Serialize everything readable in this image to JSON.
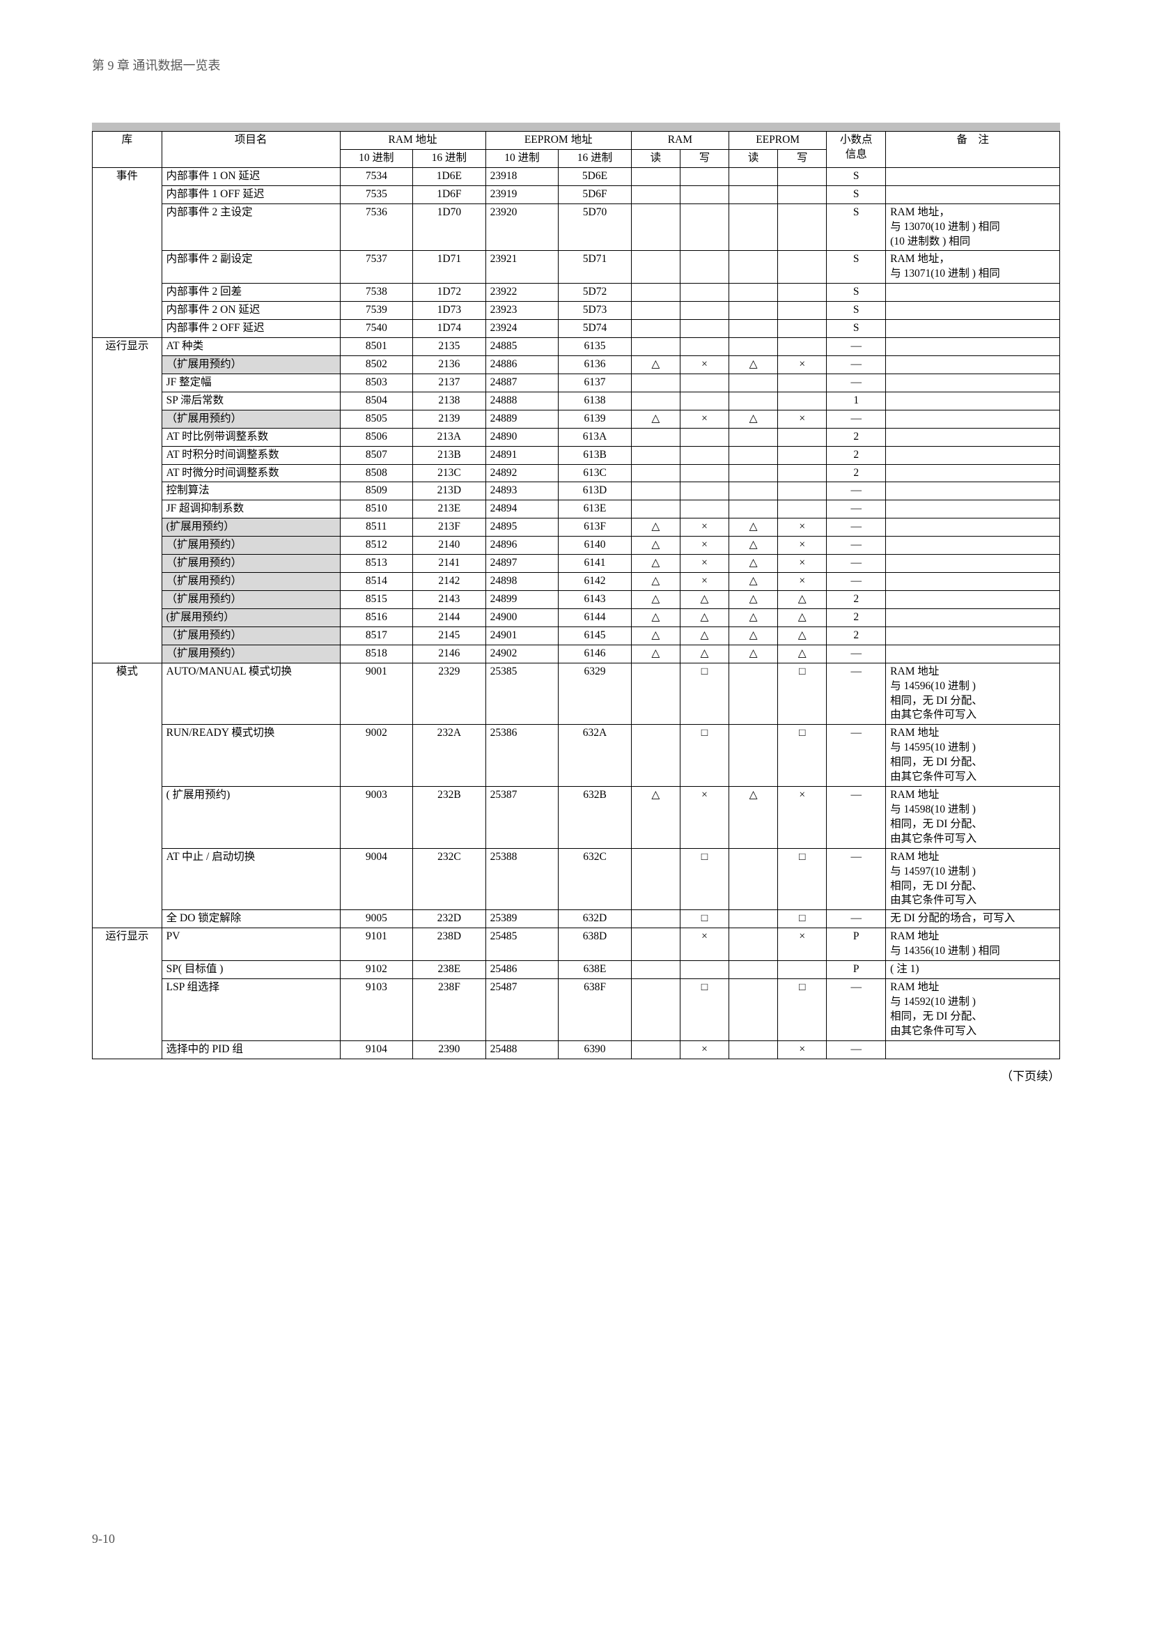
{
  "header": "第 9 章 通讯数据一览表",
  "footer_note": "（下页续）",
  "page_number": "9-10",
  "columns": {
    "lib": "库",
    "name": "项目名",
    "ram_addr": "RAM 地址",
    "eeprom_addr": "EEPROM 地址",
    "ram": "RAM",
    "eeprom": "EEPROM",
    "dp": "小数点\n信息",
    "remarks": "备　注",
    "dec": "10 进制",
    "hex": "16 进制",
    "read": "读",
    "write": "写"
  },
  "rows": [
    {
      "cat": "事件",
      "catspan": 7,
      "name": "内部事件 1 ON 延迟",
      "d1": "7534",
      "h1": "1D6E",
      "d2": "23918",
      "h2": "5D6E",
      "r": "",
      "w": "",
      "r2": "",
      "w2": "",
      "dp": "S",
      "rem": ""
    },
    {
      "name": "内部事件 1 OFF 延迟",
      "d1": "7535",
      "h1": "1D6F",
      "d2": "23919",
      "h2": "5D6F",
      "r": "",
      "w": "",
      "r2": "",
      "w2": "",
      "dp": "S",
      "rem": ""
    },
    {
      "name": "内部事件 2 主设定",
      "d1": "7536",
      "h1": "1D70",
      "d2": "23920",
      "h2": "5D70",
      "r": "",
      "w": "",
      "r2": "",
      "w2": "",
      "dp": "S",
      "rem": "RAM 地址，\n与 13070(10 进制 ) 相同\n(10 进制数 ) 相同"
    },
    {
      "name": "内部事件 2 副设定",
      "d1": "7537",
      "h1": "1D71",
      "d2": "23921",
      "h2": "5D71",
      "r": "",
      "w": "",
      "r2": "",
      "w2": "",
      "dp": "S",
      "rem": "RAM 地址，\n与 13071(10 进制 ) 相同"
    },
    {
      "name": "内部事件 2 回差",
      "d1": "7538",
      "h1": "1D72",
      "d2": "23922",
      "h2": "5D72",
      "r": "",
      "w": "",
      "r2": "",
      "w2": "",
      "dp": "S",
      "rem": ""
    },
    {
      "name": "内部事件 2 ON 延迟",
      "d1": "7539",
      "h1": "1D73",
      "d2": "23923",
      "h2": "5D73",
      "r": "",
      "w": "",
      "r2": "",
      "w2": "",
      "dp": "S",
      "rem": ""
    },
    {
      "name": "内部事件 2 OFF 延迟",
      "d1": "7540",
      "h1": "1D74",
      "d2": "23924",
      "h2": "5D74",
      "r": "",
      "w": "",
      "r2": "",
      "w2": "",
      "dp": "S",
      "rem": ""
    },
    {
      "cat": "运行显示",
      "catspan": 18,
      "name": "AT 种类",
      "d1": "8501",
      "h1": "2135",
      "d2": "24885",
      "h2": "6135",
      "r": "",
      "w": "",
      "r2": "",
      "w2": "",
      "dp": "—",
      "rem": ""
    },
    {
      "shade": true,
      "name": "（扩展用预约）",
      "d1": "8502",
      "h1": "2136",
      "d2": "24886",
      "h2": "6136",
      "r": "△",
      "w": "×",
      "r2": "△",
      "w2": "×",
      "dp": "—",
      "rem": ""
    },
    {
      "name": "JF 整定幅",
      "d1": "8503",
      "h1": "2137",
      "d2": "24887",
      "h2": "6137",
      "r": "",
      "w": "",
      "r2": "",
      "w2": "",
      "dp": "—",
      "rem": ""
    },
    {
      "name": "SP 滞后常数",
      "d1": "8504",
      "h1": "2138",
      "d2": "24888",
      "h2": "6138",
      "r": "",
      "w": "",
      "r2": "",
      "w2": "",
      "dp": "1",
      "rem": ""
    },
    {
      "shade": true,
      "name": "（扩展用预约）",
      "d1": "8505",
      "h1": "2139",
      "d2": "24889",
      "h2": "6139",
      "r": "△",
      "w": "×",
      "r2": "△",
      "w2": "×",
      "dp": "—",
      "rem": ""
    },
    {
      "name": "AT 时比例带调整系数",
      "d1": "8506",
      "h1": "213A",
      "d2": "24890",
      "h2": "613A",
      "r": "",
      "w": "",
      "r2": "",
      "w2": "",
      "dp": "2",
      "rem": ""
    },
    {
      "name": "AT 时积分时间调整系数",
      "d1": "8507",
      "h1": "213B",
      "d2": "24891",
      "h2": "613B",
      "r": "",
      "w": "",
      "r2": "",
      "w2": "",
      "dp": "2",
      "rem": ""
    },
    {
      "name": "AT 时微分时间调整系数",
      "d1": "8508",
      "h1": "213C",
      "d2": "24892",
      "h2": "613C",
      "r": "",
      "w": "",
      "r2": "",
      "w2": "",
      "dp": "2",
      "rem": ""
    },
    {
      "name": "控制算法",
      "d1": "8509",
      "h1": "213D",
      "d2": "24893",
      "h2": "613D",
      "r": "",
      "w": "",
      "r2": "",
      "w2": "",
      "dp": "—",
      "rem": ""
    },
    {
      "name": "JF 超调抑制系数",
      "d1": "8510",
      "h1": "213E",
      "d2": "24894",
      "h2": "613E",
      "r": "",
      "w": "",
      "r2": "",
      "w2": "",
      "dp": "—",
      "rem": ""
    },
    {
      "shade": true,
      "name": "(扩展用预约）",
      "d1": "8511",
      "h1": "213F",
      "d2": "24895",
      "h2": "613F",
      "r": "△",
      "w": "×",
      "r2": "△",
      "w2": "×",
      "dp": "—",
      "rem": ""
    },
    {
      "shade": true,
      "name": "（扩展用预约）",
      "d1": "8512",
      "h1": "2140",
      "d2": "24896",
      "h2": "6140",
      "r": "△",
      "w": "×",
      "r2": "△",
      "w2": "×",
      "dp": "—",
      "rem": ""
    },
    {
      "shade": true,
      "name": "（扩展用预约）",
      "d1": "8513",
      "h1": "2141",
      "d2": "24897",
      "h2": "6141",
      "r": "△",
      "w": "×",
      "r2": "△",
      "w2": "×",
      "dp": "—",
      "rem": ""
    },
    {
      "shade": true,
      "name": "（扩展用预约）",
      "d1": "8514",
      "h1": "2142",
      "d2": "24898",
      "h2": "6142",
      "r": "△",
      "w": "×",
      "r2": "△",
      "w2": "×",
      "dp": "—",
      "rem": ""
    },
    {
      "shade": true,
      "name": "（扩展用预约）",
      "d1": "8515",
      "h1": "2143",
      "d2": "24899",
      "h2": "6143",
      "r": "△",
      "w": "△",
      "r2": "△",
      "w2": "△",
      "dp": "2",
      "rem": ""
    },
    {
      "shade": true,
      "name": "(扩展用预约）",
      "d1": "8516",
      "h1": "2144",
      "d2": "24900",
      "h2": "6144",
      "r": "△",
      "w": "△",
      "r2": "△",
      "w2": "△",
      "dp": "2",
      "rem": ""
    },
    {
      "shade": true,
      "name": "（扩展用预约）",
      "d1": "8517",
      "h1": "2145",
      "d2": "24901",
      "h2": "6145",
      "r": "△",
      "w": "△",
      "r2": "△",
      "w2": "△",
      "dp": "2",
      "rem": ""
    },
    {
      "shade": true,
      "name": "（扩展用预约）",
      "d1": "8518",
      "h1": "2146",
      "d2": "24902",
      "h2": "6146",
      "r": "△",
      "w": "△",
      "r2": "△",
      "w2": "△",
      "dp": "—",
      "rem": ""
    },
    {
      "cat": "模式",
      "catspan": 5,
      "name": "AUTO/MANUAL 模式切换",
      "d1": "9001",
      "h1": "2329",
      "d2": "25385",
      "h2": "6329",
      "r": "",
      "w": "□",
      "r2": "",
      "w2": "□",
      "dp": "—",
      "rem": "RAM 地址\n与 14596(10 进制 )\n相同，无 DI 分配、\n由其它条件可写入"
    },
    {
      "name": "RUN/READY 模式切换",
      "d1": "9002",
      "h1": "232A",
      "d2": "25386",
      "h2": "632A",
      "r": "",
      "w": "□",
      "r2": "",
      "w2": "□",
      "dp": "—",
      "rem": "RAM 地址\n与 14595(10 进制 )\n相同，无 DI 分配、\n由其它条件可写入"
    },
    {
      "name": "( 扩展用预约)",
      "d1": "9003",
      "h1": "232B",
      "d2": "25387",
      "h2": "632B",
      "r": "△",
      "w": "×",
      "r2": "△",
      "w2": "×",
      "dp": "—",
      "rem": "RAM 地址\n与 14598(10 进制 )\n相同，无 DI 分配、\n由其它条件可写入"
    },
    {
      "name": "AT 中止 / 启动切换",
      "d1": "9004",
      "h1": "232C",
      "d2": "25388",
      "h2": "632C",
      "r": "",
      "w": "□",
      "r2": "",
      "w2": "□",
      "dp": "—",
      "rem": "RAM 地址\n与 14597(10 进制 )\n相同，无 DI 分配、\n由其它条件可写入"
    },
    {
      "name": "全 DO 锁定解除",
      "d1": "9005",
      "h1": "232D",
      "d2": "25389",
      "h2": "632D",
      "r": "",
      "w": "□",
      "r2": "",
      "w2": "□",
      "dp": "—",
      "rem": "无 DI 分配的场合，可写入"
    },
    {
      "cat": "运行显示",
      "catspan": 4,
      "name": "PV",
      "d1": "9101",
      "h1": "238D",
      "d2": "25485",
      "h2": "638D",
      "r": "",
      "w": "×",
      "r2": "",
      "w2": "×",
      "dp": "P",
      "rem": "RAM 地址\n与 14356(10 进制 ) 相同"
    },
    {
      "name": "SP( 目标值 )",
      "d1": "9102",
      "h1": "238E",
      "d2": "25486",
      "h2": "638E",
      "r": "",
      "w": "",
      "r2": "",
      "w2": "",
      "dp": "P",
      "rem": "( 注 1)"
    },
    {
      "name": "LSP 组选择",
      "d1": "9103",
      "h1": "238F",
      "d2": "25487",
      "h2": "638F",
      "r": "",
      "w": "□",
      "r2": "",
      "w2": "□",
      "dp": "—",
      "rem": "RAM 地址\n与 14592(10 进制 )\n相同，无 DI 分配、\n由其它条件可写入"
    },
    {
      "name": "选择中的 PID 组",
      "d1": "9104",
      "h1": "2390",
      "d2": "25488",
      "h2": "6390",
      "r": "",
      "w": "×",
      "r2": "",
      "w2": "×",
      "dp": "—",
      "rem": ""
    }
  ]
}
